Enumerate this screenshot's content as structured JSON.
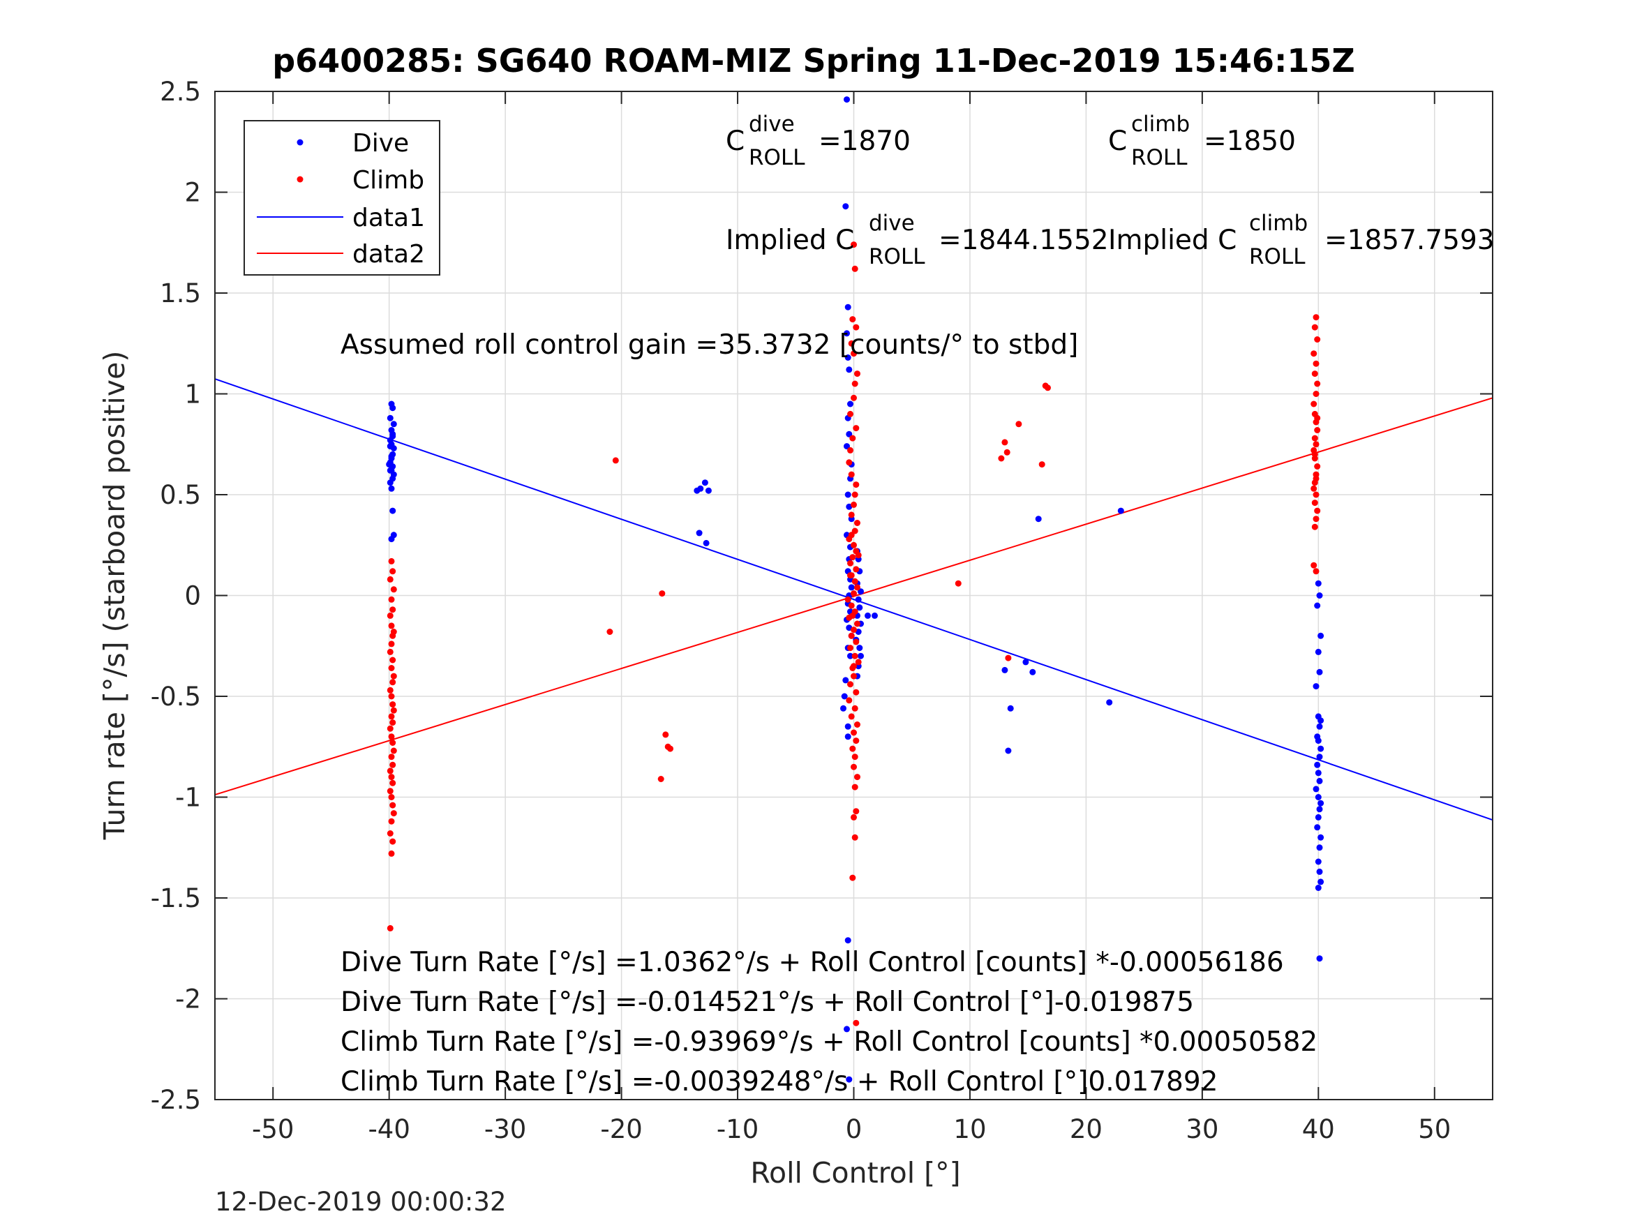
{
  "chart_data": {
    "type": "scatter",
    "title": "p6400285: SG640 ROAM-MIZ Spring 11-Dec-2019 15:46:15Z",
    "xlabel": "Roll Control [°]",
    "ylabel": "Turn rate [°/s] (starboard positive)",
    "xlim": [
      -55,
      55
    ],
    "ylim": [
      -2.5,
      2.5
    ],
    "xticks": [
      -50,
      -40,
      -30,
      -20,
      -10,
      0,
      10,
      20,
      30,
      40,
      50
    ],
    "xtick_labels": [
      "-50",
      "-40",
      "-30",
      "-20",
      "-10",
      "0",
      "10",
      "20",
      "30",
      "40",
      "50"
    ],
    "yticks": [
      2.5,
      2,
      1.5,
      1,
      0.5,
      0,
      -0.5,
      -1,
      -1.5,
      -2,
      -2.5
    ],
    "ytick_labels": [
      "2.5",
      "2",
      "1.5",
      "1",
      "0.5",
      "0",
      "-0.5",
      "-1",
      "-1.5",
      "-2",
      "-2.5"
    ],
    "grid": true,
    "legend_position": "top-left",
    "legend": [
      "Dive",
      "Climb",
      "data1",
      "data2"
    ],
    "colors": {
      "dive": "#0000ff",
      "climb": "#ff0000",
      "axes": "#262626",
      "grid": "#dcdcdc"
    },
    "series": [
      {
        "name": "Dive",
        "kind": "points",
        "x": [
          -39.8,
          -39.7,
          -39.9,
          -39.6,
          -39.8,
          -39.7,
          -39.9,
          -39.8,
          -39.6,
          -39.7,
          -39.8,
          -39.9,
          -39.7,
          -39.8,
          -39.6,
          -39.7,
          -39.9,
          -39.8,
          -39.7,
          -39.6,
          -39.8,
          -39.7,
          -39.9,
          -39.8,
          -40.0,
          -39.9,
          -13.5,
          -13.2,
          -12.8,
          -12.5,
          -13.3,
          -12.7,
          -0.6,
          -0.7,
          -0.5,
          -0.6,
          -0.5,
          -0.4,
          -0.3,
          -0.5,
          -0.4,
          -0.6,
          -0.2,
          -0.3,
          -0.5,
          -0.4,
          -0.2,
          -0.6,
          -0.3,
          -0.4,
          -0.5,
          -0.3,
          -0.2,
          -0.4,
          -0.5,
          -0.3,
          -0.6,
          -0.4,
          -0.2,
          -0.5,
          0.3,
          0.4,
          0.5,
          0.3,
          0.6,
          0.4,
          0.5,
          0.3,
          0.6,
          0.4,
          0.2,
          0.5,
          0.6,
          0.4,
          0.3,
          -0.7,
          -0.8,
          -0.9,
          -0.5,
          1.2,
          1.8,
          13.0,
          14.8,
          15.4,
          15.9,
          13.3,
          13.5,
          22.0,
          23.0,
          40.0,
          40.1,
          39.9,
          40.2,
          40.0,
          40.1,
          39.8,
          40.0,
          40.2,
          40.1,
          39.9,
          40.0,
          40.2,
          40.1,
          39.9,
          40.0,
          40.1,
          39.8,
          40.0,
          40.2,
          40.1,
          40.0,
          39.9,
          40.2,
          40.1,
          40.0,
          40.1,
          40.2,
          40.0,
          40.1,
          -0.5,
          -0.6,
          -0.4,
          -0.3,
          -0.5
        ],
        "y": [
          0.95,
          0.93,
          0.88,
          0.85,
          0.82,
          0.79,
          0.77,
          0.75,
          0.73,
          0.7,
          0.68,
          0.66,
          0.64,
          0.62,
          0.6,
          0.58,
          0.56,
          0.53,
          0.42,
          0.3,
          0.28,
          0.8,
          0.74,
          0.69,
          0.65,
          0.62,
          0.52,
          0.53,
          0.56,
          0.52,
          0.31,
          0.26,
          2.46,
          1.93,
          1.43,
          1.3,
          1.18,
          1.12,
          0.95,
          0.88,
          0.8,
          0.74,
          0.65,
          0.58,
          0.5,
          0.44,
          0.38,
          0.3,
          0.24,
          0.18,
          0.12,
          0.08,
          0.04,
          0.0,
          -0.04,
          -0.08,
          -0.12,
          -0.16,
          -0.2,
          -0.26,
          0.22,
          0.18,
          0.12,
          0.06,
          0.02,
          -0.02,
          -0.06,
          -0.1,
          -0.14,
          -0.18,
          -0.22,
          -0.26,
          -0.3,
          -0.35,
          -0.4,
          -0.42,
          -0.5,
          -0.56,
          -0.65,
          -0.1,
          -0.1,
          -0.37,
          -0.33,
          -0.38,
          0.38,
          -0.77,
          -0.56,
          -0.53,
          0.42,
          0.06,
          0.0,
          -0.05,
          -0.2,
          -0.28,
          -0.38,
          -0.45,
          -0.6,
          -0.62,
          -0.65,
          -0.7,
          -0.72,
          -0.76,
          -0.8,
          -0.84,
          -0.88,
          -0.92,
          -0.96,
          -1.0,
          -1.03,
          -1.06,
          -1.1,
          -1.15,
          -1.2,
          -1.25,
          -1.32,
          -1.37,
          -1.42,
          -1.45,
          -1.8,
          -1.71,
          -2.15,
          -2.4,
          -0.3,
          -0.7
        ]
      },
      {
        "name": "Climb",
        "kind": "points",
        "x": [
          -39.8,
          -39.7,
          -39.9,
          -39.6,
          -39.8,
          -39.7,
          -39.9,
          -39.8,
          -39.6,
          -39.7,
          -39.8,
          -39.9,
          -39.7,
          -39.8,
          -39.6,
          -39.7,
          -39.9,
          -39.8,
          -39.7,
          -39.6,
          -39.8,
          -39.7,
          -39.9,
          -39.8,
          -39.7,
          -39.6,
          -39.8,
          -39.7,
          -39.9,
          -39.8,
          -39.7,
          -39.9,
          -39.8,
          -39.7,
          -39.6,
          -39.8,
          -39.9,
          -39.7,
          -39.8,
          -39.9,
          -20.5,
          -21.0,
          -16.5,
          -16.2,
          -16.0,
          -15.8,
          -16.6,
          9.0,
          12.7,
          13.0,
          13.2,
          14.2,
          16.5,
          16.2,
          16.7,
          13.3,
          0.0,
          0.1,
          -0.1,
          0.2,
          -0.2,
          0.0,
          0.3,
          0.1,
          0.0,
          -0.3,
          0.2,
          -0.1,
          -0.3,
          -0.4,
          -0.2,
          0.2,
          0.1,
          0.0,
          -0.2,
          0.3,
          0.1,
          -0.4,
          0.0,
          0.2,
          -0.1,
          -0.3,
          0.2,
          -0.2,
          0.1,
          0.3,
          0.0,
          -0.5,
          -0.2,
          0.1,
          -0.4,
          0.3,
          0.0,
          -0.2,
          0.2,
          -0.3,
          0.1,
          0.4,
          -0.1,
          0.0,
          -0.3,
          0.2,
          -0.4,
          0.1,
          -0.2,
          0.3,
          0.0,
          0.2,
          -0.1,
          0.1,
          0.0,
          0.3,
          0.1,
          0.2,
          0.0,
          0.1,
          -0.1,
          0.2,
          0.4,
          -0.2,
          -0.3,
          -0.1,
          0.0,
          39.8,
          39.7,
          39.9,
          39.6,
          39.8,
          39.7,
          39.9,
          39.8,
          39.6,
          39.7,
          39.8,
          39.9,
          39.7,
          39.8,
          39.6,
          39.7,
          39.9,
          39.8,
          39.7,
          39.6,
          39.8,
          39.7,
          39.9,
          39.8,
          39.7,
          39.6,
          39.8,
          39.7,
          39.9,
          39.8
        ],
        "y": [
          0.17,
          0.12,
          0.08,
          0.03,
          -0.02,
          -0.07,
          -0.1,
          -0.15,
          -0.18,
          -0.2,
          -0.24,
          -0.28,
          -0.32,
          -0.36,
          -0.4,
          -0.43,
          -0.47,
          -0.5,
          -0.54,
          -0.57,
          -0.6,
          -0.63,
          -0.66,
          -0.7,
          -0.73,
          -0.77,
          -0.8,
          -0.84,
          -0.87,
          -0.9,
          -0.93,
          -0.97,
          -1.0,
          -1.04,
          -1.08,
          -1.12,
          -1.18,
          -1.22,
          -1.28,
          -1.65,
          0.67,
          -0.18,
          0.01,
          -0.69,
          -0.75,
          -0.76,
          -0.91,
          0.06,
          0.68,
          0.76,
          0.71,
          0.85,
          1.04,
          0.65,
          1.03,
          -0.31,
          1.74,
          1.62,
          1.37,
          1.33,
          1.25,
          1.2,
          1.1,
          1.05,
          0.98,
          0.9,
          0.83,
          0.78,
          0.72,
          0.66,
          0.6,
          0.55,
          0.5,
          0.45,
          0.4,
          0.36,
          0.32,
          0.28,
          0.25,
          0.22,
          0.19,
          0.16,
          0.13,
          0.1,
          0.07,
          0.04,
          0.01,
          -0.02,
          -0.05,
          -0.08,
          -0.11,
          -0.14,
          -0.17,
          -0.2,
          -0.23,
          -0.26,
          -0.3,
          -0.33,
          -0.36,
          -0.4,
          -0.44,
          -0.48,
          -0.52,
          -0.56,
          -0.6,
          -0.64,
          -0.68,
          -0.72,
          -0.76,
          -0.8,
          -0.85,
          -0.9,
          -0.95,
          -1.07,
          -1.1,
          -1.2,
          -1.4,
          -2.12,
          0.2,
          0.3,
          0.1,
          -0.1,
          -0.35,
          1.38,
          1.33,
          1.27,
          1.2,
          1.15,
          1.1,
          1.05,
          1.0,
          0.95,
          0.9,
          0.86,
          0.82,
          0.78,
          0.75,
          0.72,
          0.68,
          0.64,
          0.6,
          0.56,
          0.53,
          0.5,
          0.46,
          0.42,
          0.38,
          0.34,
          0.15,
          0.12,
          0.7,
          0.88,
          0.58
        ],
        "marker": "dot"
      },
      {
        "name": "data1",
        "kind": "line",
        "x": [
          -55,
          55
        ],
        "y": [
          1.074,
          -1.113
        ]
      },
      {
        "name": "data2",
        "kind": "line",
        "x": [
          -55,
          55
        ],
        "y": [
          -0.988,
          0.98
        ]
      }
    ],
    "annotations": {
      "c_dive_base": "C",
      "c_dive_sup": "dive",
      "c_dive_sub": "ROLL",
      "c_dive_value": "=1870",
      "c_climb_base": "C",
      "c_climb_sup": "climb",
      "c_climb_sub": "ROLL",
      "c_climb_value": "=1850",
      "implied_dive_prefix": "Implied C",
      "implied_dive_sup": "dive",
      "implied_dive_sub": "ROLL",
      "implied_dive_value": "=1844.1552",
      "implied_climb_prefix": "Implied C",
      "implied_climb_sup": "climb",
      "implied_climb_sub": "ROLL",
      "implied_climb_value": "=1857.7593",
      "gain": "Assumed roll control gain =35.3732 [counts/° to stbd]",
      "eq1": "Dive Turn Rate [°/s] =1.0362°/s + Roll Control [counts] *-0.00056186",
      "eq2": "Dive Turn Rate [°/s] =-0.014521°/s + Roll Control [°]-0.019875",
      "eq3": "Climb Turn Rate [°/s] =-0.93969°/s + Roll Control [counts] *0.00050582",
      "eq4": "Climb Turn Rate [°/s] =-0.0039248°/s + Roll Control [°]0.017892"
    },
    "footer": "12-Dec-2019 00:00:32"
  }
}
